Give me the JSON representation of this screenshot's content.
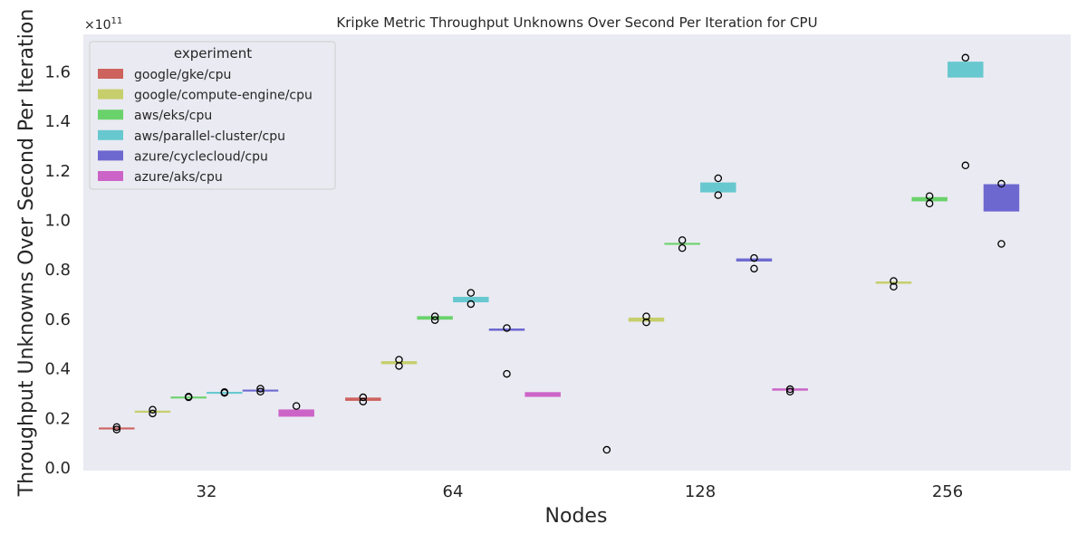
{
  "chart_data": {
    "type": "box",
    "title": "Kripke Metric Throughput Unknowns Over Second Per Iteration for CPU",
    "xlabel": "Nodes",
    "ylabel": "Throughput Unknowns Over Second Per Iteration",
    "y_multiplier_label": "×10",
    "y_multiplier_exp": "11",
    "y_ticks": [
      "0.0",
      "0.2",
      "0.4",
      "0.6",
      "0.8",
      "1.0",
      "1.2",
      "1.4",
      "1.6"
    ],
    "ylim": [
      0,
      1.75
    ],
    "categories": [
      "32",
      "64",
      "128",
      "256"
    ],
    "grid": false,
    "legend": {
      "title": "experiment",
      "placement": "top-left"
    },
    "series": [
      {
        "name": "google/gke/cpu",
        "color": "#cd625e",
        "boxes": [
          {
            "category": "32",
            "q1": 0.158,
            "q3": 0.162,
            "outliers": [
              0.155,
              0.165
            ]
          },
          {
            "category": "64",
            "q1": 0.272,
            "q3": 0.283,
            "outliers": [
              0.268,
              0.285
            ]
          }
        ]
      },
      {
        "name": "google/compute-engine/cpu",
        "color": "#c6cf6c",
        "boxes": [
          {
            "category": "32",
            "q1": 0.224,
            "q3": 0.23,
            "outliers": [
              0.22,
              0.235
            ]
          },
          {
            "category": "64",
            "q1": 0.42,
            "q3": 0.43,
            "outliers": [
              0.412,
              0.437
            ]
          },
          {
            "category": "128",
            "q1": 0.592,
            "q3": 0.606,
            "outliers": [
              0.588,
              0.612
            ]
          },
          {
            "category": "256",
            "q1": 0.745,
            "q3": 0.752,
            "outliers": [
              0.732,
              0.755
            ]
          }
        ]
      },
      {
        "name": "aws/eks/cpu",
        "color": "#6ad26b",
        "boxes": [
          {
            "category": "32",
            "q1": 0.285,
            "q3": 0.287,
            "outliers": [
              0.285,
              0.288
            ]
          },
          {
            "category": "64",
            "q1": 0.6,
            "q3": 0.612,
            "outliers": [
              0.597,
              0.612
            ]
          },
          {
            "category": "128",
            "q1": 0.903,
            "q3": 0.908,
            "outliers": [
              0.888,
              0.92
            ]
          },
          {
            "category": "256",
            "q1": 1.078,
            "q3": 1.093,
            "outliers": [
              1.068,
              1.098
            ]
          }
        ]
      },
      {
        "name": "aws/parallel-cluster/cpu",
        "color": "#68c8cf",
        "boxes": [
          {
            "category": "32",
            "q1": 0.304,
            "q3": 0.306,
            "outliers": [
              0.303,
              0.306
            ]
          },
          {
            "category": "64",
            "q1": 0.67,
            "q3": 0.69,
            "outliers": [
              0.662,
              0.707
            ]
          },
          {
            "category": "128",
            "q1": 1.114,
            "q3": 1.152,
            "outliers": [
              1.102,
              1.17
            ]
          },
          {
            "category": "256",
            "q1": 1.578,
            "q3": 1.64,
            "outliers": [
              1.222,
              1.657
            ]
          }
        ]
      },
      {
        "name": "azure/cyclecloud/cpu",
        "color": "#6d68d0",
        "boxes": [
          {
            "category": "32",
            "q1": 0.313,
            "q3": 0.315,
            "outliers": [
              0.308,
              0.32
            ]
          },
          {
            "category": "64",
            "q1": 0.555,
            "q3": 0.562,
            "outliers": [
              0.38,
              0.565
            ]
          },
          {
            "category": "128",
            "q1": 0.835,
            "q3": 0.845,
            "outliers": [
              0.805,
              0.848
            ]
          },
          {
            "category": "256",
            "q1": 1.037,
            "q3": 1.145,
            "outliers": [
              0.905,
              1.148
            ]
          }
        ]
      },
      {
        "name": "azure/aks/cpu",
        "color": "#cc64c8",
        "boxes": [
          {
            "category": "32",
            "q1": 0.208,
            "q3": 0.235,
            "outliers": [
              0.25
            ]
          },
          {
            "category": "64",
            "q1": 0.288,
            "q3": 0.305,
            "outliers": []
          },
          {
            "category": "128",
            "q1": 0.313,
            "q3": 0.32,
            "outliers": [
              0.308,
              0.318
            ]
          }
        ]
      }
    ],
    "extra_points": [
      {
        "category": "128",
        "value": 0.073
      }
    ]
  }
}
